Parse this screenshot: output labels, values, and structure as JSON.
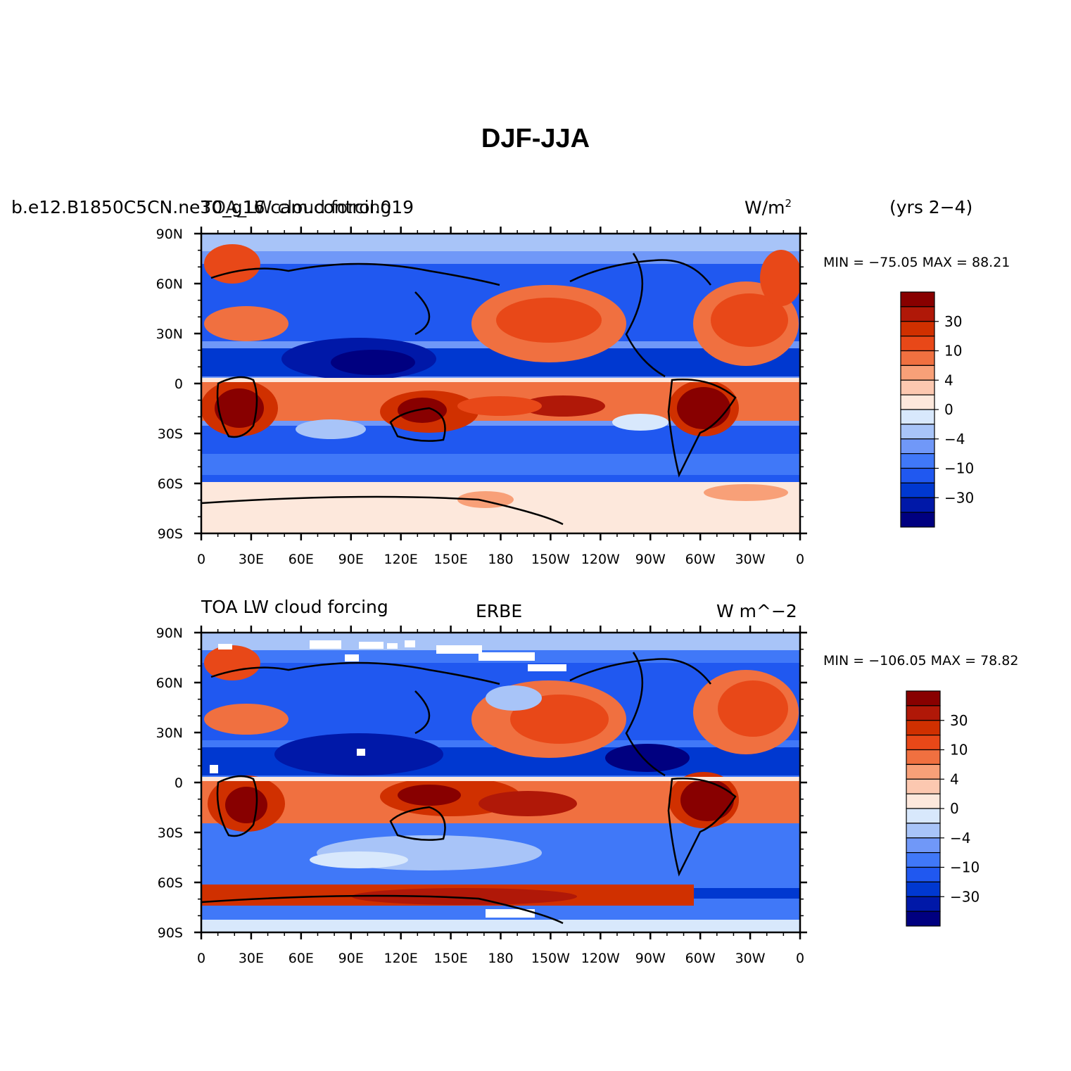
{
  "title": "DJF-JJA",
  "colors": {
    "levels": [
      "#000080",
      "#0018a8",
      "#0038d0",
      "#2058f0",
      "#4078f8",
      "#7098f8",
      "#a8c4f8",
      "#d8e8fc",
      "#fde8dc",
      "#fcc8b0",
      "#f8a078",
      "#f07040",
      "#e84818",
      "#d03000",
      "#b01808",
      "#880000"
    ]
  },
  "colorbar_labels": [
    "30",
    "10",
    "4",
    "0",
    "−4",
    "−10",
    "−30"
  ],
  "lat_ticks": [
    "90N",
    "60N",
    "30N",
    "0",
    "30S",
    "60S",
    "90S"
  ],
  "lon_ticks": [
    "0",
    "30E",
    "60E",
    "90E",
    "120E",
    "150E",
    "180",
    "150W",
    "120W",
    "90W",
    "60W",
    "30W",
    "0"
  ],
  "panels": [
    {
      "left_title": "b.e12.B1850C5CN.ne30_g16.cam.control.019",
      "left_title2": "TOA_LW cloud forcing",
      "center_title": "",
      "right_title": "W/m",
      "right_title_sup": "2",
      "years": "(yrs 2−4)",
      "min_label": "MIN = ",
      "min": "−75.05",
      "max_label": "MAX = ",
      "max": "88.21"
    },
    {
      "left_title": "TOA LW cloud forcing",
      "center_title": "ERBE",
      "right_title": "W m^−2",
      "min_label": "MIN = ",
      "min": "−106.05",
      "max_label": "MAX = ",
      "max": "78.82"
    }
  ]
}
